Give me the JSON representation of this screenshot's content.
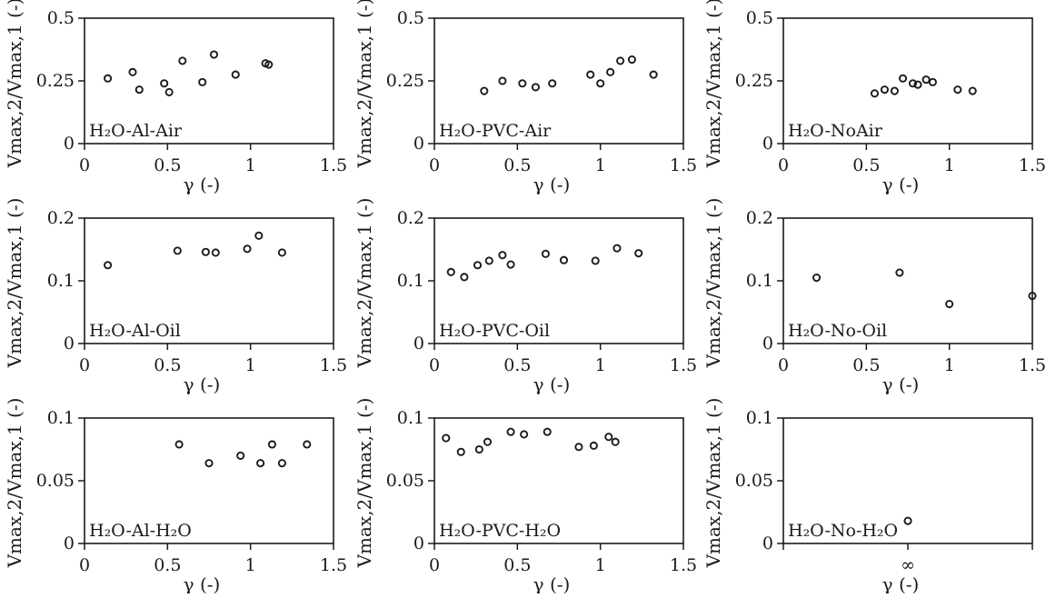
{
  "chart_data": [
    {
      "type": "scatter",
      "panel_label": "H₂O-Al-Air",
      "xlabel": "γ (-)",
      "ylabel": "Vmax,2/Vmax,1 (-)",
      "xlim": [
        0,
        1.5
      ],
      "ylim": [
        0,
        0.5
      ],
      "xticks": [
        0,
        0.5,
        1,
        1.5
      ],
      "xtick_labels": [
        "0",
        "0.5",
        "1",
        "1.5"
      ],
      "yticks": [
        0,
        0.25,
        0.5
      ],
      "ytick_labels": [
        "0",
        "0.25",
        "0.5"
      ],
      "x": [
        0.14,
        0.29,
        0.33,
        0.48,
        0.51,
        0.59,
        0.71,
        0.78,
        0.91,
        1.09,
        1.11
      ],
      "y": [
        0.26,
        0.285,
        0.215,
        0.24,
        0.205,
        0.33,
        0.245,
        0.355,
        0.275,
        0.32,
        0.315
      ]
    },
    {
      "type": "scatter",
      "panel_label": "H₂O-PVC-Air",
      "xlabel": "γ (-)",
      "ylabel": "Vmax,2/Vmax,1 (-)",
      "xlim": [
        0,
        1.5
      ],
      "ylim": [
        0,
        0.5
      ],
      "xticks": [
        0,
        0.5,
        1,
        1.5
      ],
      "xtick_labels": [
        "0",
        "0.5",
        "1",
        "1.5"
      ],
      "yticks": [
        0,
        0.25,
        0.5
      ],
      "ytick_labels": [
        "0",
        "0.25",
        "0.5"
      ],
      "x": [
        0.3,
        0.41,
        0.53,
        0.61,
        0.71,
        0.94,
        1.0,
        1.06,
        1.12,
        1.19,
        1.32
      ],
      "y": [
        0.21,
        0.25,
        0.24,
        0.225,
        0.24,
        0.275,
        0.24,
        0.285,
        0.33,
        0.335,
        0.275
      ]
    },
    {
      "type": "scatter",
      "panel_label": "H₂O-NoAir",
      "xlabel": "γ (-)",
      "ylabel": "Vmax,2/Vmax,1 (-)",
      "xlim": [
        0,
        1.5
      ],
      "ylim": [
        0,
        0.5
      ],
      "xticks": [
        0,
        0.5,
        1,
        1.5
      ],
      "xtick_labels": [
        "0",
        "0.5",
        "1",
        "1.5"
      ],
      "yticks": [
        0,
        0.25,
        0.5
      ],
      "ytick_labels": [
        "0",
        "0.25",
        "0.5"
      ],
      "x": [
        0.55,
        0.61,
        0.67,
        0.72,
        0.78,
        0.81,
        0.86,
        0.9,
        1.05,
        1.14
      ],
      "y": [
        0.2,
        0.215,
        0.21,
        0.26,
        0.24,
        0.235,
        0.255,
        0.245,
        0.215,
        0.21
      ]
    },
    {
      "type": "scatter",
      "panel_label": "H₂O-Al-Oil",
      "xlabel": "γ (-)",
      "ylabel": "Vmax,2/Vmax,1 (-)",
      "xlim": [
        0,
        1.5
      ],
      "ylim": [
        0,
        0.2
      ],
      "xticks": [
        0,
        0.5,
        1,
        1.5
      ],
      "xtick_labels": [
        "0",
        "0.5",
        "1",
        "1.5"
      ],
      "yticks": [
        0,
        0.1,
        0.2
      ],
      "ytick_labels": [
        "0",
        "0.1",
        "0.2"
      ],
      "x": [
        0.14,
        0.56,
        0.73,
        0.79,
        0.98,
        1.05,
        1.19
      ],
      "y": [
        0.125,
        0.148,
        0.146,
        0.145,
        0.151,
        0.172,
        0.145
      ]
    },
    {
      "type": "scatter",
      "panel_label": "H₂O-PVC-Oil",
      "xlabel": "γ (-)",
      "ylabel": "Vmax,2/Vmax,1 (-)",
      "xlim": [
        0,
        1.5
      ],
      "ylim": [
        0,
        0.2
      ],
      "xticks": [
        0,
        0.5,
        1,
        1.5
      ],
      "xtick_labels": [
        "0",
        "0.5",
        "1",
        "1.5"
      ],
      "yticks": [
        0,
        0.1,
        0.2
      ],
      "ytick_labels": [
        "0",
        "0.1",
        "0.2"
      ],
      "x": [
        0.1,
        0.18,
        0.26,
        0.33,
        0.41,
        0.46,
        0.67,
        0.78,
        0.97,
        1.1,
        1.23
      ],
      "y": [
        0.114,
        0.106,
        0.125,
        0.132,
        0.141,
        0.126,
        0.143,
        0.133,
        0.132,
        0.152,
        0.144
      ]
    },
    {
      "type": "scatter",
      "panel_label": "H₂O-No-Oil",
      "xlabel": "γ (-)",
      "ylabel": "Vmax,2/Vmax,1 (-)",
      "xlim": [
        0,
        1.5
      ],
      "ylim": [
        0,
        0.2
      ],
      "xticks": [
        0,
        0.5,
        1,
        1.5
      ],
      "xtick_labels": [
        "0",
        "0.5",
        "1",
        "1.5"
      ],
      "yticks": [
        0,
        0.1,
        0.2
      ],
      "ytick_labels": [
        "0",
        "0.1",
        "0.2"
      ],
      "x": [
        0.2,
        0.7,
        1.0,
        1.5
      ],
      "y": [
        0.105,
        0.113,
        0.063,
        0.076
      ]
    },
    {
      "type": "scatter",
      "panel_label": "H₂O-Al-H₂O",
      "xlabel": "γ (-)",
      "ylabel": "Vmax,2/Vmax,1 (-)",
      "xlim": [
        0,
        1.5
      ],
      "ylim": [
        0,
        0.1
      ],
      "xticks": [
        0,
        0.5,
        1,
        1.5
      ],
      "xtick_labels": [
        "0",
        "0.5",
        "1",
        "1.5"
      ],
      "yticks": [
        0,
        0.05,
        0.1
      ],
      "ytick_labels": [
        "0",
        "0.05",
        "0.1"
      ],
      "x": [
        0.57,
        0.75,
        0.94,
        1.06,
        1.13,
        1.19,
        1.34
      ],
      "y": [
        0.079,
        0.064,
        0.07,
        0.064,
        0.079,
        0.064,
        0.079
      ]
    },
    {
      "type": "scatter",
      "panel_label": "H₂O-PVC-H₂O",
      "xlabel": "γ (-)",
      "ylabel": "Vmax,2/Vmax,1 (-)",
      "xlim": [
        0,
        1.5
      ],
      "ylim": [
        0,
        0.1
      ],
      "xticks": [
        0,
        0.5,
        1,
        1.5
      ],
      "xtick_labels": [
        "0",
        "0.5",
        "1",
        "1.5"
      ],
      "yticks": [
        0,
        0.05,
        0.1
      ],
      "ytick_labels": [
        "0",
        "0.05",
        "0.1"
      ],
      "x": [
        0.07,
        0.16,
        0.27,
        0.32,
        0.46,
        0.54,
        0.68,
        0.87,
        0.96,
        1.05,
        1.09
      ],
      "y": [
        0.084,
        0.073,
        0.075,
        0.081,
        0.089,
        0.087,
        0.089,
        0.077,
        0.078,
        0.085,
        0.081
      ]
    },
    {
      "type": "scatter",
      "panel_label": "H₂O-No-H₂O",
      "xlabel": "γ (-)",
      "ylabel": "Vmax,2/Vmax,1 (-)",
      "xlim": [
        0,
        1.5
      ],
      "ylim": [
        0,
        0.1
      ],
      "xticks": [
        0.75
      ],
      "xtick_labels": [
        "∞"
      ],
      "yticks": [
        0,
        0.05,
        0.1
      ],
      "ytick_labels": [
        "0",
        "0.05",
        "0.1"
      ],
      "x": [
        0.75
      ],
      "y": [
        0.018
      ],
      "x_values_note": "∞"
    }
  ]
}
